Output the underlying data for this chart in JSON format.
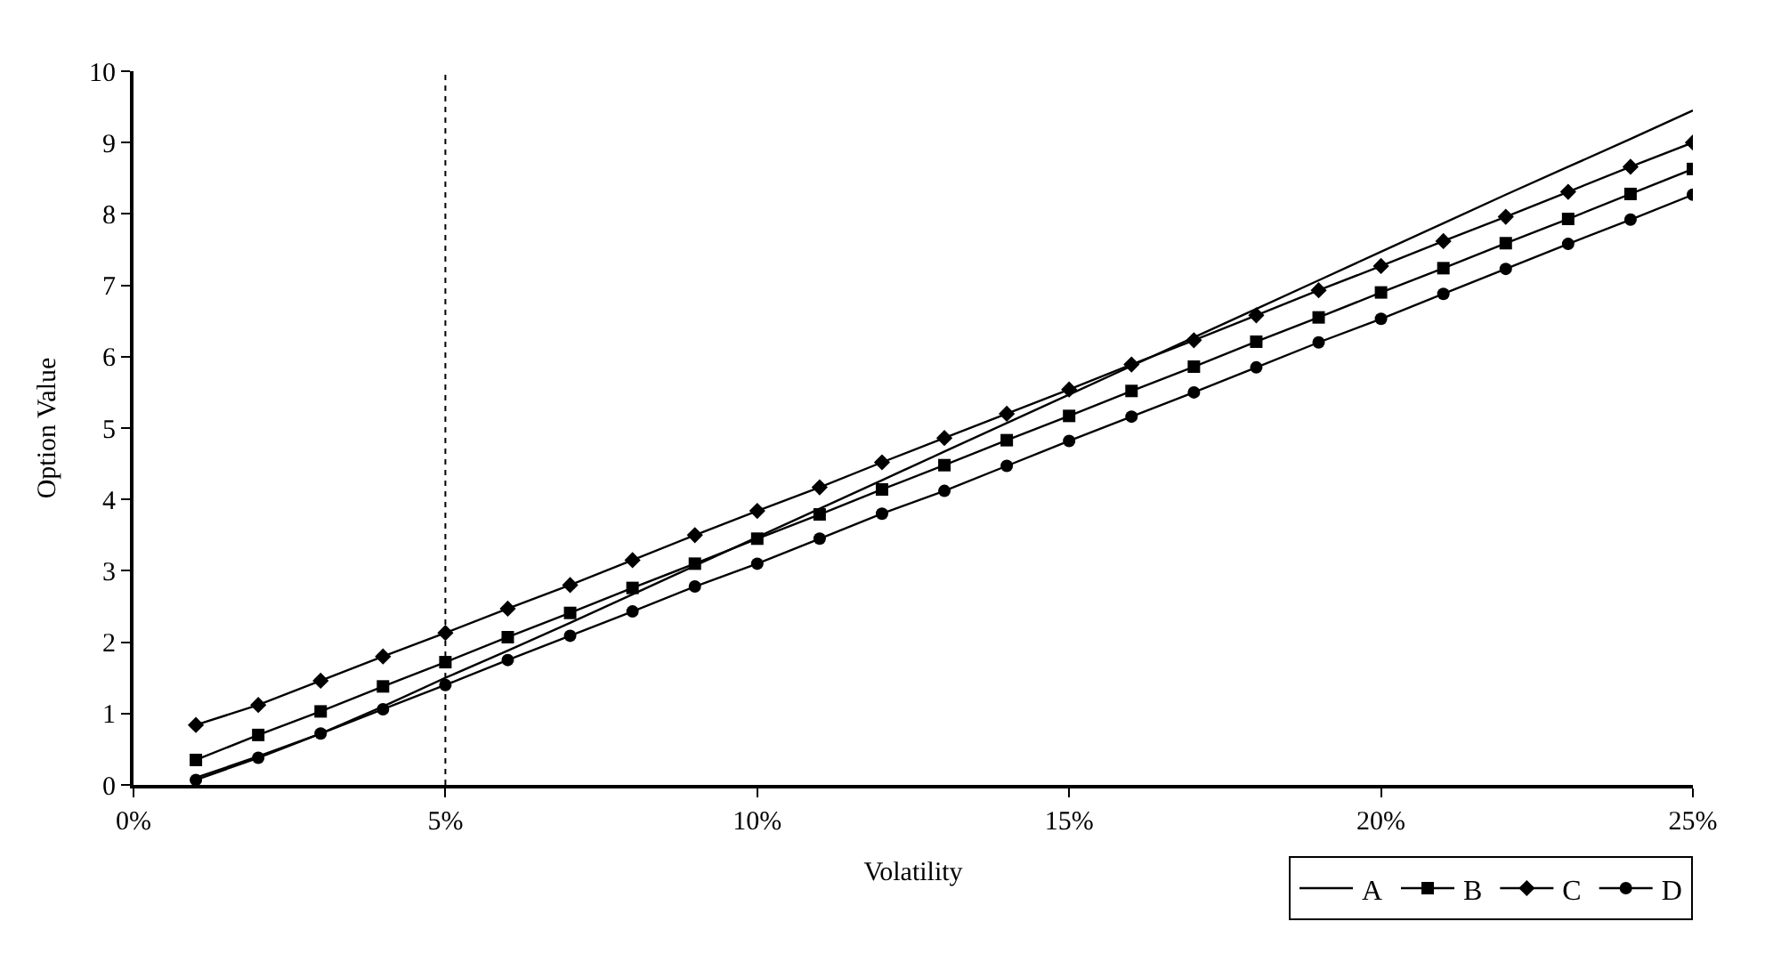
{
  "chart_data": {
    "type": "line",
    "xlabel": "Volatility",
    "ylabel": "Option Value",
    "x": [
      1,
      2,
      3,
      4,
      5,
      6,
      7,
      8,
      9,
      10,
      11,
      12,
      13,
      14,
      15,
      16,
      17,
      18,
      19,
      20,
      21,
      22,
      23,
      24,
      25
    ],
    "xlim": [
      0,
      25
    ],
    "xticks": [
      {
        "value": 0,
        "label": "0%"
      },
      {
        "value": 5,
        "label": "5%"
      },
      {
        "value": 10,
        "label": "10%"
      },
      {
        "value": 15,
        "label": "15%"
      },
      {
        "value": 20,
        "label": "20%"
      },
      {
        "value": 25,
        "label": "25%"
      }
    ],
    "ylim": [
      0,
      10
    ],
    "yticks": [
      0,
      1,
      2,
      3,
      4,
      5,
      6,
      7,
      8,
      9,
      10
    ],
    "legend": "bottom right",
    "line_style": "solid",
    "ref_lines": [
      {
        "axis": "x",
        "value": 5,
        "color": "#000000",
        "line_style": "dotted"
      }
    ],
    "series": [
      {
        "name": "A",
        "color": "#000000",
        "marker": "none",
        "values": [
          0.1,
          0.4,
          0.72,
          1.1,
          1.5,
          1.88,
          2.27,
          2.67,
          3.07,
          3.47,
          3.87,
          4.27,
          4.67,
          5.07,
          5.47,
          5.87,
          6.27,
          6.67,
          7.07,
          7.47,
          7.87,
          8.27,
          8.66,
          9.05,
          9.45
        ]
      },
      {
        "name": "B",
        "color": "#000000",
        "marker": "square",
        "values": [
          0.35,
          0.7,
          1.03,
          1.38,
          1.72,
          2.07,
          2.41,
          2.76,
          3.1,
          3.45,
          3.79,
          4.14,
          4.48,
          4.83,
          5.17,
          5.52,
          5.86,
          6.21,
          6.55,
          6.9,
          7.24,
          7.59,
          7.93,
          8.28,
          8.63
        ]
      },
      {
        "name": "C",
        "color": "#000000",
        "marker": "diamond",
        "values": [
          0.84,
          1.12,
          1.46,
          1.8,
          2.13,
          2.47,
          2.8,
          3.15,
          3.5,
          3.84,
          4.17,
          4.52,
          4.86,
          5.2,
          5.54,
          5.89,
          6.23,
          6.58,
          6.93,
          7.27,
          7.62,
          7.96,
          8.31,
          8.66,
          9.0
        ]
      },
      {
        "name": "D",
        "color": "#000000",
        "marker": "circle",
        "values": [
          0.07,
          0.38,
          0.72,
          1.06,
          1.4,
          1.75,
          2.09,
          2.43,
          2.78,
          3.1,
          3.45,
          3.8,
          4.12,
          4.47,
          4.82,
          5.16,
          5.5,
          5.85,
          6.2,
          6.53,
          6.88,
          7.23,
          7.58,
          7.92,
          8.27
        ]
      }
    ]
  }
}
